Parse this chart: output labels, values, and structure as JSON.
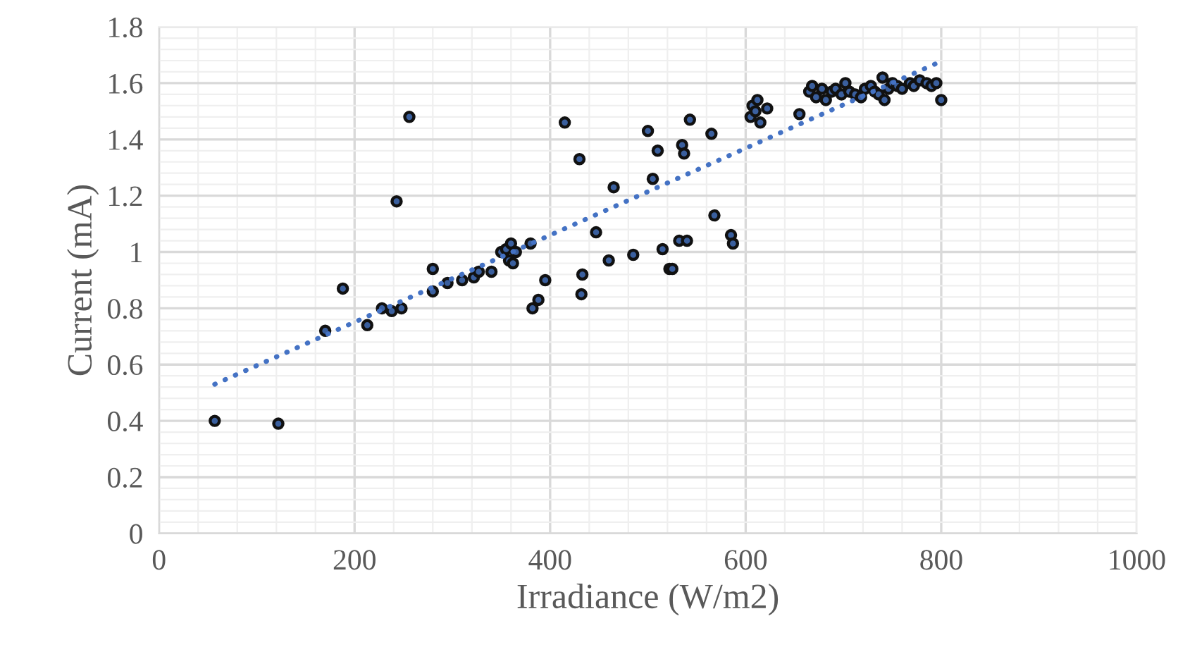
{
  "chart_data": {
    "type": "scatter",
    "xlabel": "Irradiance (W/m2)",
    "ylabel": "Current (mA)",
    "xlim": [
      0,
      1000
    ],
    "xticks": [
      0,
      200,
      400,
      600,
      800,
      1000
    ],
    "ylim": [
      0,
      1.8
    ],
    "yticks": [
      0,
      0.2,
      0.4,
      0.6,
      0.8,
      1,
      1.2,
      1.4,
      1.6,
      1.8
    ],
    "grid": true,
    "series": [
      {
        "marker": "circle",
        "color": "#3a5f9e",
        "x": [
          57,
          122,
          170,
          188,
          213,
          228,
          238,
          243,
          248,
          256,
          280,
          280,
          295,
          310,
          322,
          327,
          340,
          350,
          355,
          358,
          360,
          362,
          365,
          380,
          382,
          388,
          395,
          415,
          430,
          432,
          433,
          447,
          460,
          465,
          485,
          500,
          505,
          510,
          515,
          522,
          525,
          532,
          535,
          537,
          540,
          543,
          565,
          568,
          585,
          587,
          605,
          607,
          610,
          612,
          615,
          622,
          655,
          665,
          668,
          672,
          678,
          682,
          688,
          692,
          698,
          702,
          706,
          712,
          718,
          722,
          728,
          732,
          736,
          740,
          742,
          746,
          750,
          755,
          760,
          768,
          772,
          778,
          785,
          790,
          795,
          800
        ],
        "values": [
          0.4,
          0.39,
          0.72,
          0.87,
          0.74,
          0.8,
          0.79,
          1.18,
          0.8,
          1.48,
          0.86,
          0.94,
          0.89,
          0.9,
          0.91,
          0.93,
          0.93,
          1.0,
          1.01,
          0.97,
          1.03,
          0.96,
          1.0,
          1.03,
          0.8,
          0.83,
          0.9,
          1.46,
          1.33,
          0.85,
          0.92,
          1.07,
          0.97,
          1.23,
          0.99,
          1.43,
          1.26,
          1.36,
          1.01,
          0.94,
          0.94,
          1.04,
          1.38,
          1.35,
          1.04,
          1.47,
          1.42,
          1.13,
          1.06,
          1.03,
          1.48,
          1.52,
          1.5,
          1.54,
          1.46,
          1.51,
          1.49,
          1.57,
          1.59,
          1.55,
          1.58,
          1.54,
          1.57,
          1.58,
          1.56,
          1.6,
          1.57,
          1.56,
          1.55,
          1.58,
          1.59,
          1.57,
          1.56,
          1.62,
          1.54,
          1.58,
          1.6,
          1.59,
          1.58,
          1.6,
          1.59,
          1.61,
          1.6,
          1.59,
          1.6,
          1.54
        ]
      },
      {
        "type": "line",
        "marker": "none",
        "color": "#4472c4",
        "line_style": "dotted",
        "x": [
          57,
          795
        ],
        "values": [
          0.53,
          1.67
        ]
      }
    ]
  }
}
